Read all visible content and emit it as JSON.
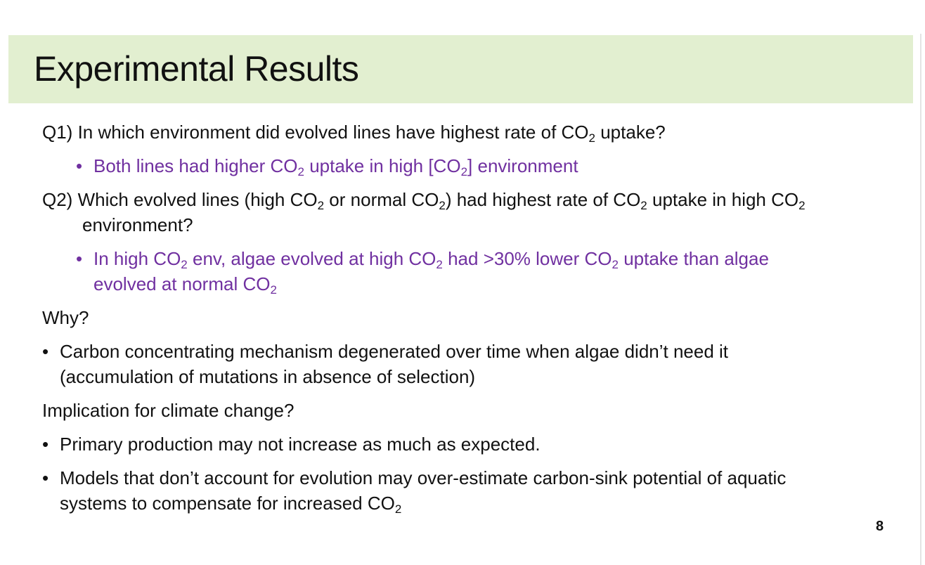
{
  "slide": {
    "title": "Experimental Results",
    "page_number": "8",
    "colors": {
      "title_band": "#e2efd0",
      "answer_text": "#7030a0",
      "body_text": "#111111"
    }
  },
  "q1": {
    "prefix": "Q1) In which environment did evolved lines have highest rate of CO",
    "sub": "2",
    "suffix": " uptake?"
  },
  "a1": {
    "bullet": "•",
    "part1": "Both lines had higher CO",
    "sub": "2",
    "part2": " uptake in high [CO",
    "sub2": "2",
    "part3": "] environment"
  },
  "q2": {
    "part1": "Q2) Which evolved lines (high CO",
    "sub1": "2",
    "part2": " or normal CO",
    "sub2": "2",
    "part3": ") had highest rate of CO",
    "sub3": "2",
    "part4": " uptake in high CO",
    "sub4": "2",
    "part5": " environment?"
  },
  "a2": {
    "bullet": "•",
    "part1": "In high CO",
    "sub1": "2",
    "part2": " env, algae evolved at high CO",
    "sub2": "2",
    "part3": " had >30% lower CO",
    "sub3": "2",
    "part4": " uptake than algae evolved at normal CO",
    "sub4": "2"
  },
  "why": {
    "heading": "Why?",
    "bullet": "•",
    "text": "Carbon concentrating mechanism degenerated over time when algae didn’t need it (accumulation of mutations in absence of selection)"
  },
  "implication": {
    "heading": "Implication for climate change?",
    "bullet": "•",
    "item1": "Primary production may not increase as much as expected.",
    "item2_part1": "Models that don’t account for evolution may over-estimate carbon-sink potential of aquatic systems to compensate for increased CO",
    "item2_sub": "2"
  }
}
